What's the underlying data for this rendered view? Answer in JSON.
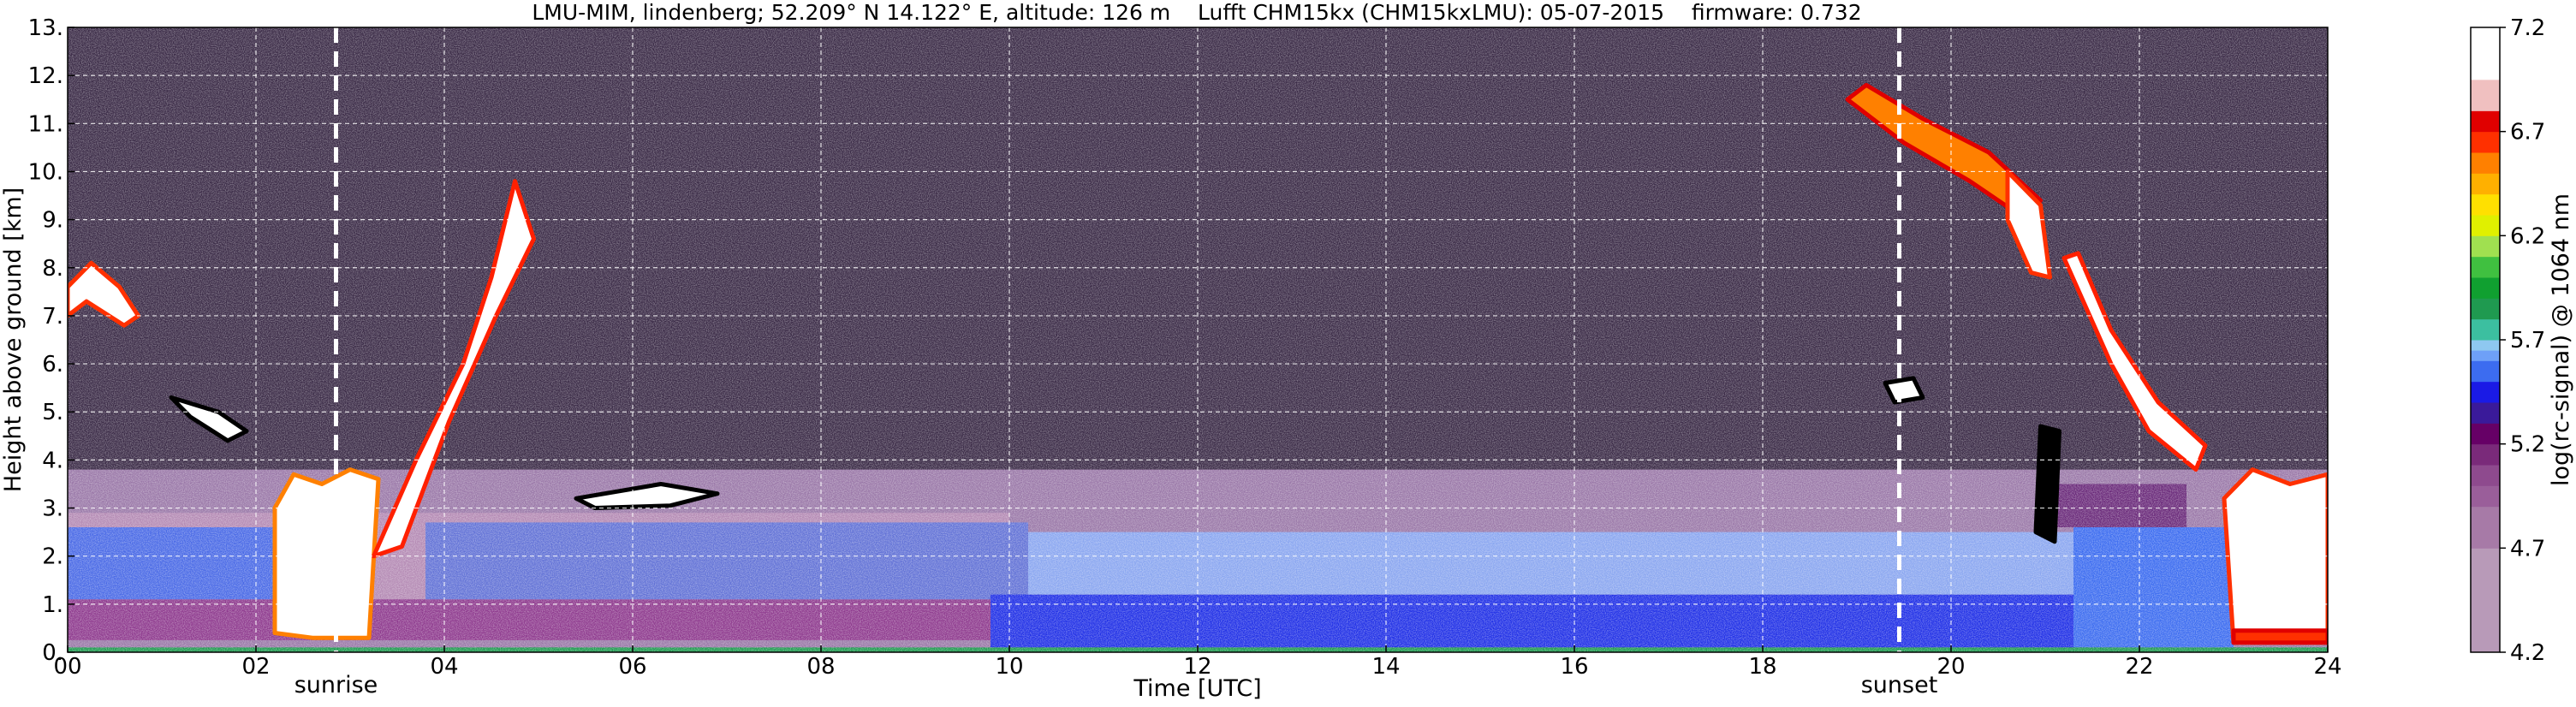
{
  "chart_data": {
    "type": "heatmap",
    "title": "LMU-MIM, lindenberg; 52.209° N 14.122° E, altitude: 126 m    Lufft CHM15kx (CHM15kxLMU): 05-07-2015    firmware: 0.732",
    "xlabel": "Time [UTC]",
    "ylabel": "Height above ground [km]",
    "xlim": [
      0,
      24
    ],
    "ylim": [
      0,
      13
    ],
    "x_ticks": [
      "00",
      "02",
      "04",
      "06",
      "08",
      "10",
      "12",
      "14",
      "16",
      "18",
      "20",
      "22",
      "24"
    ],
    "y_ticks": [
      "0.",
      "1.",
      "2.",
      "3.",
      "4.",
      "5.",
      "6.",
      "7.",
      "8.",
      "9.",
      "10.",
      "11.",
      "12.",
      "13."
    ],
    "grid": true,
    "colorbar": {
      "label": "log(rc-signal) @ 1064 nm",
      "range": [
        4.2,
        7.2
      ],
      "ticks": [
        "4.2",
        "4.7",
        "5.2",
        "5.7",
        "6.2",
        "6.7",
        "7.2"
      ],
      "levels": [
        {
          "from": 4.2,
          "color": "#b89ab8"
        },
        {
          "from": 4.7,
          "color": "#a77aa7"
        },
        {
          "from": 4.9,
          "color": "#9a5e9a"
        },
        {
          "from": 5.0,
          "color": "#8e4a8e"
        },
        {
          "from": 5.1,
          "color": "#7a2a7a"
        },
        {
          "from": 5.2,
          "color": "#660066"
        },
        {
          "from": 5.3,
          "color": "#3a1a9a"
        },
        {
          "from": 5.4,
          "color": "#1a1ae6"
        },
        {
          "from": 5.5,
          "color": "#3c6cf0"
        },
        {
          "from": 5.6,
          "color": "#6ea0f7"
        },
        {
          "from": 5.65,
          "color": "#8ec8f0"
        },
        {
          "from": 5.7,
          "color": "#3cbfa0"
        },
        {
          "from": 5.8,
          "color": "#1f9a50"
        },
        {
          "from": 5.9,
          "color": "#10a030"
        },
        {
          "from": 6.0,
          "color": "#40c040"
        },
        {
          "from": 6.1,
          "color": "#a0e050"
        },
        {
          "from": 6.2,
          "color": "#e0f000"
        },
        {
          "from": 6.3,
          "color": "#ffe000"
        },
        {
          "from": 6.4,
          "color": "#ffb000"
        },
        {
          "from": 6.5,
          "color": "#ff8000"
        },
        {
          "from": 6.6,
          "color": "#ff3000"
        },
        {
          "from": 6.7,
          "color": "#e00000"
        },
        {
          "from": 6.8,
          "color": "#f0c0c0"
        },
        {
          "from": 6.95,
          "color": "#ffffff"
        }
      ]
    },
    "annotations": [
      {
        "text": "sunrise",
        "x": 2.85
      },
      {
        "text": "sunset",
        "x": 19.45
      }
    ],
    "layers": [
      {
        "t0": 0,
        "t1": 24,
        "h0": 2.5,
        "h1": 13,
        "color": "#3a2a46"
      },
      {
        "t0": 0,
        "t1": 24,
        "h0": 0,
        "h1": 3.8,
        "color": "#9a78a8"
      },
      {
        "t0": 0,
        "t1": 10,
        "h0": 0.25,
        "h1": 2.9,
        "color": "#b48ab4"
      },
      {
        "t0": 0,
        "t1": 10.2,
        "h0": 0.25,
        "h1": 1.1,
        "color": "#8e3a8e"
      },
      {
        "t0": 0,
        "t1": 2.3,
        "h0": 1.1,
        "h1": 2.6,
        "color": "#4a6ae6"
      },
      {
        "t0": 3.8,
        "t1": 10.2,
        "h0": 1.1,
        "h1": 2.7,
        "color": "#6272d6"
      },
      {
        "t0": 9.8,
        "t1": 21.3,
        "h0": 0.1,
        "h1": 1.2,
        "color": "#2030e6"
      },
      {
        "t0": 10.2,
        "t1": 21.3,
        "h0": 1.2,
        "h1": 2.5,
        "color": "#8aa6f0"
      },
      {
        "t0": 21.3,
        "t1": 23.0,
        "h0": 0.1,
        "h1": 2.6,
        "color": "#3c6cf0"
      },
      {
        "t0": 21.0,
        "t1": 22.5,
        "h0": 2.6,
        "h1": 3.5,
        "color": "#6a2a7a"
      },
      {
        "t0": 0,
        "t1": 24,
        "h0": 0,
        "h1": 0.1,
        "color": "#1f9a50"
      }
    ],
    "features": [
      {
        "points": [
          [
            0,
            7.6
          ],
          [
            0.25,
            8.1
          ],
          [
            0.55,
            7.6
          ],
          [
            0.75,
            7.0
          ],
          [
            0.6,
            6.8
          ],
          [
            0.2,
            7.3
          ],
          [
            0,
            7.0
          ]
        ],
        "color": "#ffffff",
        "edge": "#ff3000"
      },
      {
        "points": [
          [
            2.2,
            0.4
          ],
          [
            2.6,
            0.3
          ],
          [
            3.2,
            0.3
          ],
          [
            3.3,
            3.6
          ],
          [
            3.0,
            3.8
          ],
          [
            2.7,
            3.5
          ],
          [
            2.4,
            3.7
          ],
          [
            2.2,
            3.0
          ]
        ],
        "color": "#ffffff",
        "edge": "#ff8000"
      },
      {
        "points": [
          [
            3.25,
            2.0
          ],
          [
            3.7,
            4.0
          ],
          [
            4.2,
            6.0
          ],
          [
            4.5,
            7.8
          ],
          [
            4.75,
            9.8
          ],
          [
            4.95,
            8.6
          ],
          [
            4.55,
            7.0
          ],
          [
            4.05,
            4.8
          ],
          [
            3.55,
            2.2
          ]
        ],
        "color": "#ffffff",
        "edge": "#ff2000"
      },
      {
        "points": [
          [
            1.1,
            5.3
          ],
          [
            1.6,
            5.0
          ],
          [
            1.9,
            4.6
          ],
          [
            1.7,
            4.4
          ],
          [
            1.3,
            4.9
          ]
        ],
        "color": "#ffffff",
        "edge": "#000000"
      },
      {
        "points": [
          [
            5.4,
            3.2
          ],
          [
            6.3,
            3.5
          ],
          [
            6.9,
            3.3
          ],
          [
            6.4,
            3.05
          ],
          [
            5.6,
            3.0
          ]
        ],
        "color": "#ffffff",
        "edge": "#000000"
      },
      {
        "points": [
          [
            19.1,
            11.8
          ],
          [
            19.7,
            11.1
          ],
          [
            20.4,
            10.4
          ],
          [
            20.95,
            9.4
          ],
          [
            20.8,
            9.0
          ],
          [
            20.2,
            9.8
          ],
          [
            19.5,
            10.6
          ],
          [
            18.9,
            11.5
          ]
        ],
        "color": "#ff8000",
        "edge": "#e00000"
      },
      {
        "points": [
          [
            20.6,
            10.0
          ],
          [
            20.95,
            9.3
          ],
          [
            21.05,
            7.8
          ],
          [
            20.85,
            7.9
          ],
          [
            20.6,
            9.0
          ]
        ],
        "color": "#ffffff",
        "edge": "#ff3000"
      },
      {
        "points": [
          [
            21.2,
            8.2
          ],
          [
            21.7,
            6.0
          ],
          [
            22.1,
            4.6
          ],
          [
            22.6,
            3.8
          ],
          [
            22.7,
            4.3
          ],
          [
            22.2,
            5.2
          ],
          [
            21.7,
            6.7
          ],
          [
            21.35,
            8.3
          ]
        ],
        "color": "#ffffff",
        "edge": "#ff2000"
      },
      {
        "points": [
          [
            23.0,
            0.2
          ],
          [
            24,
            0.2
          ],
          [
            24,
            3.7
          ],
          [
            23.6,
            3.5
          ],
          [
            23.2,
            3.8
          ],
          [
            22.9,
            3.2
          ]
        ],
        "color": "#ffffff",
        "edge": "#ff3000"
      },
      {
        "points": [
          [
            23.0,
            0.2
          ],
          [
            24,
            0.2
          ],
          [
            24,
            0.45
          ],
          [
            23.0,
            0.45
          ]
        ],
        "color": "#ff3000",
        "edge": "#e00000"
      },
      {
        "points": [
          [
            19.3,
            5.6
          ],
          [
            19.6,
            5.7
          ],
          [
            19.7,
            5.3
          ],
          [
            19.4,
            5.2
          ]
        ],
        "color": "#ffffff",
        "edge": "#000000"
      },
      {
        "points": [
          [
            20.95,
            4.7
          ],
          [
            21.15,
            4.6
          ],
          [
            21.1,
            2.3
          ],
          [
            20.9,
            2.5
          ]
        ],
        "color": "#000000",
        "edge": "#000000"
      }
    ],
    "vlines": [
      2.85,
      19.45
    ]
  }
}
